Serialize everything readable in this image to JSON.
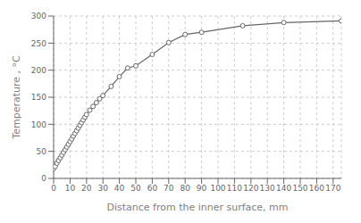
{
  "chart_data": {
    "type": "line",
    "xlabel": "Distance from the inner surface, mm",
    "ylabel": "Temperature , °C",
    "x": [
      0,
      1,
      2,
      3,
      4,
      5,
      6,
      7,
      8,
      9,
      10,
      11,
      12,
      13,
      14,
      15,
      16,
      17,
      18,
      19,
      20,
      22,
      24,
      26,
      28,
      30,
      35,
      40,
      45,
      50,
      60,
      70,
      80,
      90,
      115,
      140,
      175
    ],
    "values": [
      18,
      22,
      28,
      33,
      38,
      43,
      48,
      53,
      58,
      63,
      68,
      73,
      78,
      83,
      88,
      93,
      98,
      103,
      108,
      113,
      118,
      126,
      133,
      140,
      147,
      153,
      170,
      188,
      204,
      208,
      229,
      251,
      266,
      270,
      282,
      288,
      291
    ],
    "xlim": [
      0,
      175
    ],
    "ylim": [
      0,
      300
    ],
    "xticks": [
      0,
      10,
      20,
      30,
      40,
      50,
      60,
      70,
      80,
      90,
      100,
      110,
      120,
      130,
      140,
      150,
      160,
      170
    ],
    "yticks": [
      0,
      50,
      100,
      150,
      200,
      250,
      300
    ],
    "grid": true,
    "color": "#666666",
    "marker": "circle"
  }
}
